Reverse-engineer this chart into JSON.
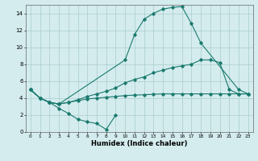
{
  "lines": [
    {
      "x": [
        0,
        1,
        2,
        3,
        4,
        5,
        6,
        7,
        8,
        9
      ],
      "y": [
        5,
        4,
        3.5,
        2.8,
        2.2,
        1.5,
        1.2,
        1.0,
        0.3,
        2.0
      ]
    },
    {
      "x": [
        0,
        1,
        2,
        3,
        10,
        11,
        12,
        13,
        14,
        15,
        16,
        17,
        18,
        22,
        23
      ],
      "y": [
        5,
        4,
        3.5,
        3.3,
        8.5,
        11.5,
        13.3,
        14.0,
        14.5,
        14.7,
        14.8,
        12.8,
        10.5,
        5.0,
        4.5
      ]
    },
    {
      "x": [
        0,
        1,
        2,
        3,
        4,
        5,
        6,
        7,
        8,
        9,
        10,
        11,
        12,
        13,
        14,
        15,
        16,
        17,
        18,
        19,
        20,
        21,
        22,
        23
      ],
      "y": [
        5,
        4,
        3.5,
        3.3,
        3.5,
        3.8,
        4.2,
        4.5,
        4.8,
        5.2,
        5.8,
        6.2,
        6.5,
        7.0,
        7.3,
        7.6,
        7.8,
        8.0,
        8.5,
        8.5,
        8.2,
        5.0,
        4.5,
        4.5
      ]
    },
    {
      "x": [
        0,
        1,
        2,
        3,
        4,
        5,
        6,
        7,
        8,
        9,
        10,
        11,
        12,
        13,
        14,
        15,
        16,
        17,
        18,
        19,
        20,
        21,
        22,
        23
      ],
      "y": [
        5,
        4,
        3.5,
        3.3,
        3.5,
        3.7,
        3.9,
        4.0,
        4.1,
        4.2,
        4.3,
        4.35,
        4.4,
        4.45,
        4.5,
        4.5,
        4.5,
        4.5,
        4.5,
        4.5,
        4.5,
        4.5,
        4.5,
        4.5
      ]
    }
  ],
  "color": "#1a7a6e",
  "bg_color": "#d4ecee",
  "grid_color": "#aacccc",
  "xlabel": "Humidex (Indice chaleur)",
  "ylim": [
    0,
    15
  ],
  "xlim": [
    -0.5,
    23.5
  ],
  "yticks": [
    0,
    2,
    4,
    6,
    8,
    10,
    12,
    14
  ],
  "xticks": [
    0,
    1,
    2,
    3,
    4,
    5,
    6,
    7,
    8,
    9,
    10,
    11,
    12,
    13,
    14,
    15,
    16,
    17,
    18,
    19,
    20,
    21,
    22,
    23
  ]
}
